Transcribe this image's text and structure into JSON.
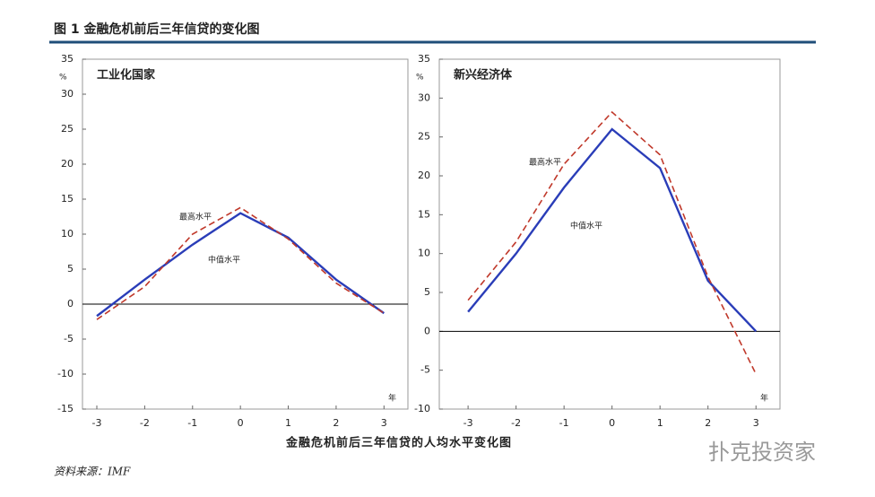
{
  "title": "图 1  金融危机前后三年信贷的变化图",
  "x_axis_label": "金融危机前后三年信贷的人均水平变化图",
  "source": "资料来源：IMF",
  "watermark": "扑克投资家",
  "chart_data": [
    {
      "type": "line",
      "title": "工业化国家",
      "y_unit": "%",
      "x_unit": "年",
      "x": [
        -3,
        -2,
        -1,
        0,
        1,
        2,
        3
      ],
      "series": [
        {
          "name": "中值水平",
          "color": "#2a3db8",
          "dashed": false,
          "values": [
            -1.7,
            3.5,
            8.5,
            13,
            9.5,
            3.5,
            -1.3
          ]
        },
        {
          "name": "最高水平",
          "color": "#c0392b",
          "dashed": true,
          "values": [
            -2.2,
            2.5,
            10,
            13.8,
            9.3,
            3,
            -1.3
          ]
        }
      ],
      "xlim": [
        -3.3,
        3.5
      ],
      "xticks": [
        -3,
        -2,
        -1,
        0,
        1,
        2,
        3
      ],
      "ylim": [
        -15,
        35
      ],
      "yticks": [
        -15,
        -10,
        -5,
        0,
        5,
        10,
        15,
        20,
        25,
        30,
        35
      ]
    },
    {
      "type": "line",
      "title": "新兴经济体",
      "y_unit": "%",
      "x_unit": "年",
      "x": [
        -3,
        -2,
        -1,
        0,
        1,
        2,
        3
      ],
      "series": [
        {
          "name": "中值水平",
          "color": "#2a3db8",
          "dashed": false,
          "values": [
            2.5,
            10,
            18.5,
            26,
            21,
            6.5,
            0
          ]
        },
        {
          "name": "最高水平",
          "color": "#c0392b",
          "dashed": true,
          "values": [
            4,
            11.5,
            21.5,
            28.2,
            22.7,
            7,
            -5.5
          ]
        }
      ],
      "xlim": [
        -3.6,
        3.5
      ],
      "xticks": [
        -3,
        -2,
        -1,
        0,
        1,
        2,
        3
      ],
      "ylim": [
        -10,
        35
      ],
      "yticks": [
        -10,
        -5,
        0,
        5,
        10,
        15,
        20,
        25,
        30,
        35
      ]
    }
  ]
}
